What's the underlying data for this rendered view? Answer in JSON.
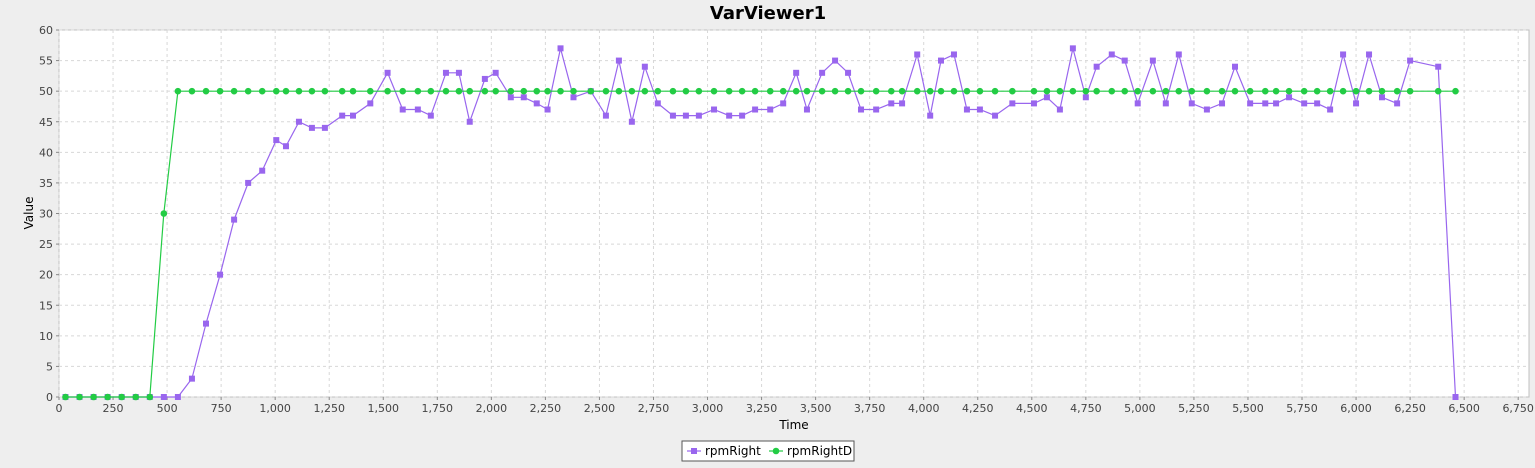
{
  "window": {
    "background": "#eeeeee",
    "plot_background": "#ffffff",
    "grid_color": "#d8d8d8"
  },
  "chart_data": {
    "type": "line",
    "title": "VarViewer1",
    "xlabel": "Time",
    "ylabel": "Value",
    "xlim": [
      0,
      6800
    ],
    "ylim": [
      0,
      60
    ],
    "x_ticks": [
      0,
      250,
      500,
      750,
      1000,
      1250,
      1500,
      1750,
      2000,
      2250,
      2500,
      2750,
      3000,
      3250,
      3500,
      3750,
      4000,
      4250,
      4500,
      4750,
      5000,
      5250,
      5500,
      5750,
      6000,
      6250,
      6500,
      6750
    ],
    "x_tick_labels": [
      "0",
      "250",
      "500",
      "750",
      "1,000",
      "1,250",
      "1,500",
      "1,750",
      "2,000",
      "2,250",
      "2,500",
      "2,750",
      "3,000",
      "3,250",
      "3,500",
      "3,750",
      "4,000",
      "4,250",
      "4,500",
      "4,750",
      "5,000",
      "5,250",
      "5,500",
      "5,750",
      "6,000",
      "6,250",
      "6,500",
      "6,750"
    ],
    "y_ticks": [
      0,
      5,
      10,
      15,
      20,
      25,
      30,
      35,
      40,
      45,
      50,
      55,
      60
    ],
    "y_tick_labels": [
      "0",
      "5",
      "10",
      "15",
      "20",
      "25",
      "30",
      "35",
      "40",
      "45",
      "50",
      "55",
      "60"
    ],
    "grid": true,
    "legend_position": "bottom-center",
    "series": [
      {
        "name": "rpmRight",
        "color": "#9966ee",
        "marker": "square",
        "x": [
          30,
          95,
          160,
          225,
          290,
          355,
          420,
          485,
          550,
          615,
          680,
          745,
          810,
          875,
          940,
          1005,
          1050,
          1110,
          1170,
          1230,
          1310,
          1360,
          1440,
          1520,
          1590,
          1660,
          1720,
          1790,
          1850,
          1900,
          1970,
          2020,
          2090,
          2150,
          2210,
          2260,
          2320,
          2380,
          2460,
          2530,
          2590,
          2650,
          2710,
          2770,
          2840,
          2900,
          2960,
          3030,
          3100,
          3160,
          3220,
          3290,
          3350,
          3410,
          3460,
          3530,
          3590,
          3650,
          3710,
          3780,
          3850,
          3900,
          3970,
          4030,
          4080,
          4140,
          4200,
          4260,
          4330,
          4410,
          4510,
          4570,
          4630,
          4690,
          4750,
          4800,
          4870,
          4930,
          4990,
          5060,
          5120,
          5180,
          5240,
          5310,
          5380,
          5440,
          5510,
          5580,
          5630,
          5690,
          5760,
          5820,
          5880,
          5940,
          6000,
          6060,
          6120,
          6190,
          6250,
          6380,
          6460
        ],
        "y": [
          0,
          0,
          0,
          0,
          0,
          0,
          0,
          0,
          0,
          3,
          12,
          20,
          29,
          35,
          37,
          42,
          41,
          45,
          44,
          44,
          46,
          46,
          48,
          53,
          47,
          47,
          46,
          53,
          53,
          45,
          52,
          53,
          49,
          49,
          48,
          47,
          57,
          49,
          50,
          46,
          55,
          45,
          54,
          48,
          46,
          46,
          46,
          47,
          46,
          46,
          47,
          47,
          48,
          53,
          47,
          53,
          55,
          53,
          47,
          47,
          48,
          48,
          56,
          46,
          55,
          56,
          47,
          47,
          46,
          48,
          48,
          49,
          47,
          57,
          49,
          54,
          56,
          55,
          48,
          55,
          48,
          56,
          48,
          47,
          48,
          54,
          48,
          48,
          48,
          49,
          48,
          48,
          47,
          56,
          48,
          56,
          49,
          48,
          55,
          54,
          0
        ]
      },
      {
        "name": "rpmRightD",
        "color": "#22cc44",
        "marker": "circle",
        "x": [
          30,
          95,
          160,
          225,
          290,
          355,
          420,
          485,
          550,
          615,
          680,
          745,
          810,
          875,
          940,
          1005,
          1050,
          1110,
          1170,
          1230,
          1310,
          1360,
          1440,
          1520,
          1590,
          1660,
          1720,
          1790,
          1850,
          1900,
          1970,
          2020,
          2090,
          2150,
          2210,
          2260,
          2320,
          2380,
          2460,
          2530,
          2590,
          2650,
          2710,
          2770,
          2840,
          2900,
          2960,
          3030,
          3100,
          3160,
          3220,
          3290,
          3350,
          3410,
          3460,
          3530,
          3590,
          3650,
          3710,
          3780,
          3850,
          3900,
          3970,
          4030,
          4080,
          4140,
          4200,
          4260,
          4330,
          4410,
          4510,
          4570,
          4630,
          4690,
          4750,
          4800,
          4870,
          4930,
          4990,
          5060,
          5120,
          5180,
          5240,
          5310,
          5380,
          5440,
          5510,
          5580,
          5630,
          5690,
          5760,
          5820,
          5880,
          5940,
          6000,
          6060,
          6120,
          6190,
          6250,
          6380,
          6460
        ],
        "y": [
          0,
          0,
          0,
          0,
          0,
          0,
          0,
          30,
          50,
          50,
          50,
          50,
          50,
          50,
          50,
          50,
          50,
          50,
          50,
          50,
          50,
          50,
          50,
          50,
          50,
          50,
          50,
          50,
          50,
          50,
          50,
          50,
          50,
          50,
          50,
          50,
          50,
          50,
          50,
          50,
          50,
          50,
          50,
          50,
          50,
          50,
          50,
          50,
          50,
          50,
          50,
          50,
          50,
          50,
          50,
          50,
          50,
          50,
          50,
          50,
          50,
          50,
          50,
          50,
          50,
          50,
          50,
          50,
          50,
          50,
          50,
          50,
          50,
          50,
          50,
          50,
          50,
          50,
          50,
          50,
          50,
          50,
          50,
          50,
          50,
          50,
          50,
          50,
          50,
          50,
          50,
          50,
          50,
          50,
          50,
          50,
          50,
          50,
          50,
          50,
          50
        ]
      }
    ]
  }
}
